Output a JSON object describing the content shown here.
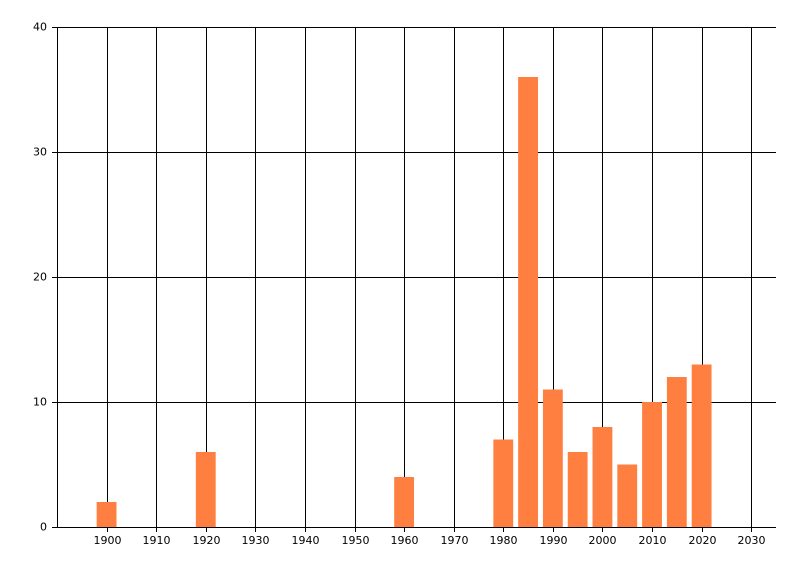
{
  "chart_data": {
    "type": "bar",
    "x": [
      1900,
      1920,
      1960,
      1980,
      1985,
      1990,
      1995,
      2000,
      2005,
      2010,
      2015,
      2020
    ],
    "values": [
      2,
      6,
      4,
      7,
      36,
      11,
      6,
      8,
      5,
      10,
      12,
      13
    ],
    "color": "#ff7f40",
    "xlim": [
      1890,
      2035
    ],
    "xticks": [
      1900,
      1910,
      1920,
      1930,
      1940,
      1950,
      1960,
      1970,
      1980,
      1990,
      2000,
      2010,
      2020,
      2030
    ],
    "ylim": [
      0,
      40
    ],
    "yticks": [
      0,
      10,
      20,
      30,
      40
    ],
    "bar_width": 4,
    "grid": true
  }
}
